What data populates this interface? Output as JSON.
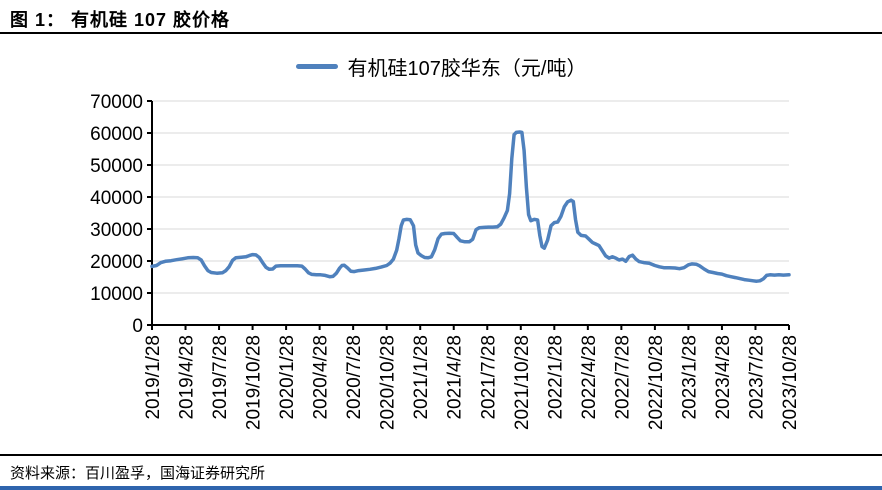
{
  "page": {
    "title": "图 1： 有机硅 107 胶价格",
    "source": "资料来源：百川盈孚，国海证券研究所"
  },
  "colors": {
    "line": "#4F81BD",
    "axis": "#000000",
    "gridline": "#D8D8D8",
    "bottom_bar": "#2E64AD"
  },
  "chart_data": {
    "type": "line",
    "title": "有机硅107胶价格",
    "legend_position": "top",
    "grid": true,
    "ylabel": "",
    "xlabel": "",
    "ylim": [
      0,
      70000
    ],
    "y_ticks": [
      0,
      10000,
      20000,
      30000,
      40000,
      50000,
      60000,
      70000
    ],
    "x_tick_labels": [
      "2019/1/28",
      "2019/4/28",
      "2019/7/28",
      "2019/10/28",
      "2020/1/28",
      "2020/4/28",
      "2020/7/28",
      "2020/10/28",
      "2021/1/28",
      "2021/4/28",
      "2021/7/28",
      "2021/10/28",
      "2022/1/28",
      "2022/4/28",
      "2022/7/28",
      "2022/10/28",
      "2023/1/28",
      "2023/4/28",
      "2023/7/28",
      "2023/10/28"
    ],
    "x_total_months": 57,
    "x_origin_date": "2019/1/28",
    "series": [
      {
        "name": "有机硅107胶华东（元/吨）",
        "points_format": "[months_since_2019/1/28, price_yuan_per_ton]",
        "points": [
          [
            0,
            18300
          ],
          [
            0.4,
            18600
          ],
          [
            0.8,
            19500
          ],
          [
            1.2,
            19900
          ],
          [
            1.7,
            20100
          ],
          [
            2.2,
            20400
          ],
          [
            2.7,
            20700
          ],
          [
            3.2,
            21000
          ],
          [
            3.7,
            21100
          ],
          [
            4.1,
            21000
          ],
          [
            4.4,
            20300
          ],
          [
            4.7,
            18500
          ],
          [
            5.0,
            17000
          ],
          [
            5.3,
            16400
          ],
          [
            5.8,
            16200
          ],
          [
            6.3,
            16300
          ],
          [
            6.6,
            17000
          ],
          [
            6.9,
            18200
          ],
          [
            7.2,
            20200
          ],
          [
            7.5,
            21000
          ],
          [
            8.0,
            21200
          ],
          [
            8.4,
            21300
          ],
          [
            8.7,
            21700
          ],
          [
            9.0,
            22000
          ],
          [
            9.3,
            21900
          ],
          [
            9.6,
            21100
          ],
          [
            9.9,
            19500
          ],
          [
            10.2,
            18000
          ],
          [
            10.5,
            17400
          ],
          [
            10.8,
            17500
          ],
          [
            11.1,
            18400
          ],
          [
            11.5,
            18500
          ],
          [
            12.0,
            18500
          ],
          [
            12.5,
            18500
          ],
          [
            13.0,
            18500
          ],
          [
            13.4,
            18400
          ],
          [
            13.7,
            17500
          ],
          [
            14.0,
            16300
          ],
          [
            14.3,
            15800
          ],
          [
            14.7,
            15700
          ],
          [
            15.1,
            15700
          ],
          [
            15.5,
            15500
          ],
          [
            15.9,
            15100
          ],
          [
            16.2,
            15200
          ],
          [
            16.5,
            16200
          ],
          [
            16.8,
            17800
          ],
          [
            17.0,
            18600
          ],
          [
            17.2,
            18700
          ],
          [
            17.5,
            17800
          ],
          [
            17.8,
            16800
          ],
          [
            18.1,
            16700
          ],
          [
            18.5,
            17000
          ],
          [
            19.0,
            17200
          ],
          [
            19.5,
            17400
          ],
          [
            20.0,
            17700
          ],
          [
            20.5,
            18100
          ],
          [
            21.0,
            18600
          ],
          [
            21.3,
            19300
          ],
          [
            21.6,
            20600
          ],
          [
            21.9,
            23400
          ],
          [
            22.1,
            27000
          ],
          [
            22.3,
            31000
          ],
          [
            22.5,
            32800
          ],
          [
            22.8,
            33000
          ],
          [
            23.1,
            32900
          ],
          [
            23.4,
            31000
          ],
          [
            23.6,
            25000
          ],
          [
            23.8,
            22500
          ],
          [
            24.1,
            21700
          ],
          [
            24.4,
            21100
          ],
          [
            24.7,
            21000
          ],
          [
            25.0,
            21300
          ],
          [
            25.3,
            23500
          ],
          [
            25.6,
            27000
          ],
          [
            25.9,
            28400
          ],
          [
            26.2,
            28600
          ],
          [
            26.6,
            28700
          ],
          [
            27.0,
            28600
          ],
          [
            27.3,
            27400
          ],
          [
            27.6,
            26300
          ],
          [
            28.0,
            26000
          ],
          [
            28.4,
            26000
          ],
          [
            28.7,
            26800
          ],
          [
            29.0,
            29800
          ],
          [
            29.3,
            30400
          ],
          [
            29.7,
            30500
          ],
          [
            30.1,
            30600
          ],
          [
            30.5,
            30600
          ],
          [
            30.9,
            30700
          ],
          [
            31.2,
            31500
          ],
          [
            31.5,
            33400
          ],
          [
            31.8,
            35800
          ],
          [
            32.0,
            41000
          ],
          [
            32.2,
            52000
          ],
          [
            32.4,
            59500
          ],
          [
            32.6,
            60200
          ],
          [
            32.9,
            60300
          ],
          [
            33.1,
            60200
          ],
          [
            33.3,
            54500
          ],
          [
            33.5,
            43000
          ],
          [
            33.7,
            34500
          ],
          [
            33.9,
            32600
          ],
          [
            34.2,
            33000
          ],
          [
            34.5,
            32800
          ],
          [
            34.7,
            28000
          ],
          [
            34.9,
            24500
          ],
          [
            35.1,
            24000
          ],
          [
            35.4,
            26500
          ],
          [
            35.7,
            31000
          ],
          [
            36.0,
            32000
          ],
          [
            36.3,
            32200
          ],
          [
            36.6,
            34000
          ],
          [
            36.9,
            37000
          ],
          [
            37.2,
            38500
          ],
          [
            37.5,
            39000
          ],
          [
            37.7,
            38600
          ],
          [
            37.9,
            33000
          ],
          [
            38.1,
            29000
          ],
          [
            38.4,
            28000
          ],
          [
            38.8,
            27800
          ],
          [
            39.1,
            26800
          ],
          [
            39.4,
            25800
          ],
          [
            39.7,
            25300
          ],
          [
            40.0,
            24800
          ],
          [
            40.3,
            23200
          ],
          [
            40.6,
            21600
          ],
          [
            40.9,
            20900
          ],
          [
            41.2,
            21300
          ],
          [
            41.5,
            20900
          ],
          [
            41.8,
            20300
          ],
          [
            42.1,
            20600
          ],
          [
            42.4,
            19900
          ],
          [
            42.7,
            21400
          ],
          [
            43.0,
            21800
          ],
          [
            43.3,
            20600
          ],
          [
            43.6,
            19800
          ],
          [
            44.0,
            19500
          ],
          [
            44.5,
            19300
          ],
          [
            45.0,
            18600
          ],
          [
            45.4,
            18200
          ],
          [
            45.8,
            17900
          ],
          [
            46.3,
            17900
          ],
          [
            46.8,
            17800
          ],
          [
            47.2,
            17600
          ],
          [
            47.6,
            17900
          ],
          [
            48.0,
            18800
          ],
          [
            48.3,
            19100
          ],
          [
            48.7,
            19000
          ],
          [
            49.0,
            18500
          ],
          [
            49.4,
            17500
          ],
          [
            49.8,
            16700
          ],
          [
            50.2,
            16400
          ],
          [
            50.6,
            16100
          ],
          [
            51.0,
            15900
          ],
          [
            51.4,
            15400
          ],
          [
            51.8,
            15100
          ],
          [
            52.2,
            14800
          ],
          [
            52.6,
            14500
          ],
          [
            53.0,
            14200
          ],
          [
            53.4,
            14000
          ],
          [
            53.8,
            13800
          ],
          [
            54.1,
            13700
          ],
          [
            54.4,
            13800
          ],
          [
            54.7,
            14400
          ],
          [
            55.0,
            15500
          ],
          [
            55.3,
            15700
          ],
          [
            55.7,
            15600
          ],
          [
            56.1,
            15700
          ],
          [
            56.5,
            15600
          ],
          [
            57.0,
            15700
          ]
        ]
      }
    ]
  }
}
